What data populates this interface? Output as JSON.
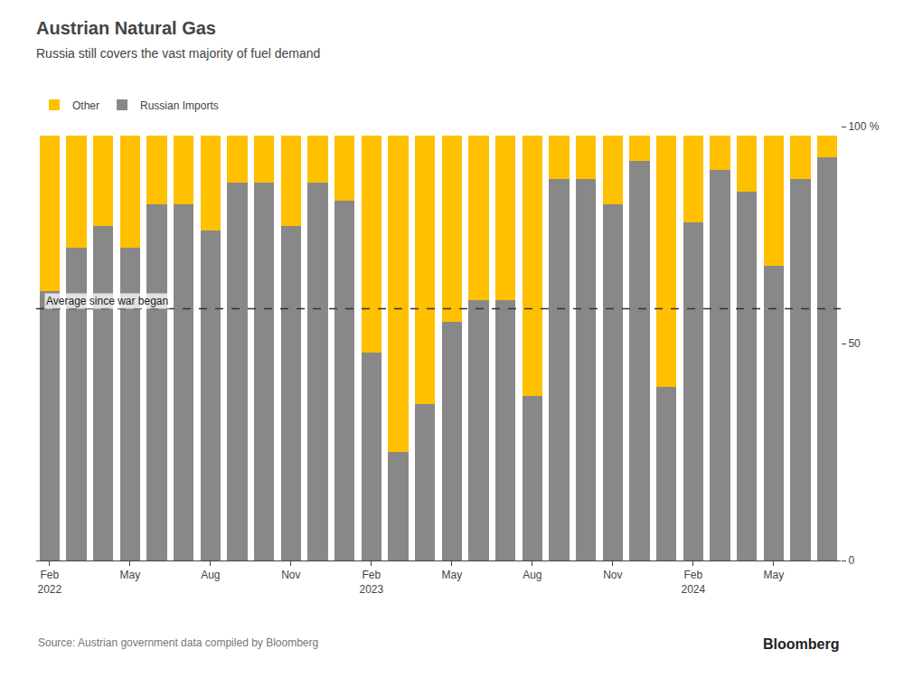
{
  "chart_data": {
    "type": "bar",
    "stacked": true,
    "title": "Austrian Natural Gas",
    "subtitle": "Russia still covers the vast majority of fuel demand",
    "annotations": [
      "Source: Austrian government data compiled by Bloomberg",
      "Bloomberg"
    ],
    "categories": [
      "Feb\n2022",
      null,
      null,
      "May",
      null,
      null,
      "Aug",
      null,
      null,
      "Nov",
      null,
      null,
      "Feb\n2023",
      null,
      null,
      "May",
      null,
      null,
      "Aug",
      null,
      null,
      "Nov",
      null,
      null,
      "Feb\n2024",
      null,
      null,
      "May",
      null,
      null
    ],
    "series": [
      {
        "name": "Russian Imports",
        "color": "#888888",
        "values": [
          62,
          72,
          77,
          72,
          82,
          82,
          76,
          87,
          87,
          77,
          87,
          83,
          48,
          25,
          36,
          55,
          60,
          60,
          38,
          88,
          88,
          82,
          92,
          40,
          78,
          90,
          85,
          68,
          88,
          93
        ]
      },
      {
        "name": "Other",
        "color": "#FFC000",
        "values": [
          36,
          26,
          21,
          26,
          16,
          16,
          22,
          11,
          11,
          21,
          11,
          15,
          50,
          73,
          62,
          43,
          38,
          38,
          60,
          10,
          10,
          16,
          6,
          58,
          20,
          8,
          13,
          30,
          10,
          5
        ]
      }
    ],
    "hline": {
      "value": 58,
      "label": "Average since war began",
      "color": "#333333",
      "line_style": "dashed"
    },
    "ylim": [
      0,
      100
    ],
    "yticks": [
      0,
      50,
      {
        "value": 100,
        "label": "100 %"
      }
    ],
    "grid": false,
    "legend": "top-left"
  }
}
